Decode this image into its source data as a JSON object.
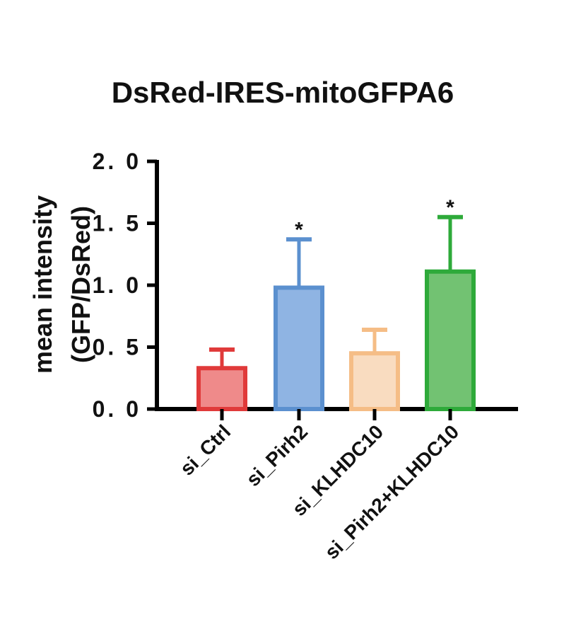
{
  "chart_data": {
    "type": "bar",
    "title": "DsRed-IRES-mitoGFPA6",
    "ylabel_lines": [
      "mean intensity",
      "(GFP/DsRed)"
    ],
    "xlabel": "",
    "categories": [
      "si_Ctrl",
      "si_Pirh2",
      "si_KLHDC10",
      "si_Pirh2+KLHDC10"
    ],
    "values": [
      0.33,
      0.98,
      0.45,
      1.11
    ],
    "error_upper": [
      0.15,
      0.39,
      0.19,
      0.44
    ],
    "significance": [
      "",
      "*",
      "",
      "*"
    ],
    "ylim": [
      0,
      2.0
    ],
    "yticks": [
      0.0,
      0.5,
      1.0,
      1.5,
      2.0
    ],
    "ytick_labels": [
      "0. 0",
      "0. 5",
      "1. 0",
      "1. 5",
      "2. 0"
    ],
    "colors": {
      "fill": [
        "#ef8a8a",
        "#8fb4e3",
        "#f9dcc0",
        "#72c272"
      ],
      "stroke": [
        "#e03a3a",
        "#5b90cf",
        "#f5bd86",
        "#2eaa3a"
      ],
      "axis": "#000000"
    },
    "grid": false,
    "legend": "none"
  }
}
